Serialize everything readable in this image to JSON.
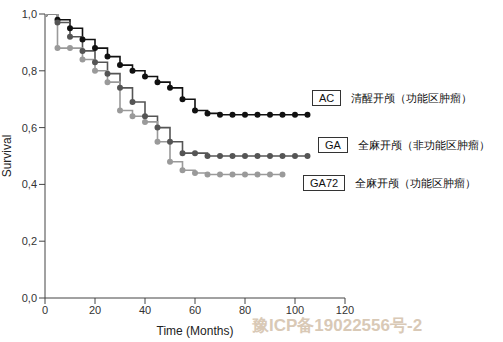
{
  "chart_data": {
    "type": "line",
    "x_label": "Time (Months)",
    "y_label": "Survival",
    "x": [
      0,
      5,
      10,
      15,
      20,
      25,
      30,
      35,
      40,
      45,
      50,
      55,
      60,
      65,
      70,
      75,
      80,
      85,
      90,
      95,
      100,
      105
    ],
    "xlim": [
      0,
      120
    ],
    "xticks": [
      0,
      20,
      40,
      60,
      80,
      100,
      120
    ],
    "ylim": [
      0,
      1
    ],
    "yticks": [
      {
        "value": 0,
        "label": "0,0"
      },
      {
        "value": 0.2,
        "label": "0,2"
      },
      {
        "value": 0.4,
        "label": "0,4"
      },
      {
        "value": 0.6,
        "label": "0,6"
      },
      {
        "value": 0.8,
        "label": "0,8"
      },
      {
        "value": 1,
        "label": "1,0"
      }
    ],
    "grid": false,
    "marker": "circle",
    "line_style": "step",
    "series": [
      {
        "name": "AC",
        "description": "清醒开颅（功能区肿瘤）",
        "color": "#111111",
        "values": [
          1.0,
          0.98,
          0.95,
          0.91,
          0.88,
          0.85,
          0.82,
          0.8,
          0.78,
          0.76,
          0.74,
          0.7,
          0.66,
          0.65,
          0.645,
          0.645,
          0.645,
          0.645,
          0.645,
          0.645,
          0.645,
          0.645
        ]
      },
      {
        "name": "GA",
        "description": "全麻开颅（非功能区肿瘤）",
        "color": "#555555",
        "values": [
          1.0,
          0.97,
          0.92,
          0.87,
          0.83,
          0.79,
          0.74,
          0.69,
          0.64,
          0.6,
          0.55,
          0.51,
          0.51,
          0.5,
          0.5,
          0.5,
          0.5,
          0.5,
          0.5,
          0.5,
          0.5,
          0.5
        ]
      },
      {
        "name": "GA72",
        "description": "全麻开颅（功能区肿瘤）",
        "color": "#9a9a9a",
        "values": [
          1.0,
          0.88,
          0.88,
          0.84,
          0.8,
          0.76,
          0.66,
          0.64,
          0.62,
          0.55,
          0.48,
          0.45,
          0.44,
          0.435,
          0.435,
          0.435,
          0.435,
          0.435,
          0.435,
          0.435,
          null,
          null
        ]
      }
    ],
    "annotations": [
      {
        "text": "豫ICP备19022556号-2"
      }
    ]
  }
}
